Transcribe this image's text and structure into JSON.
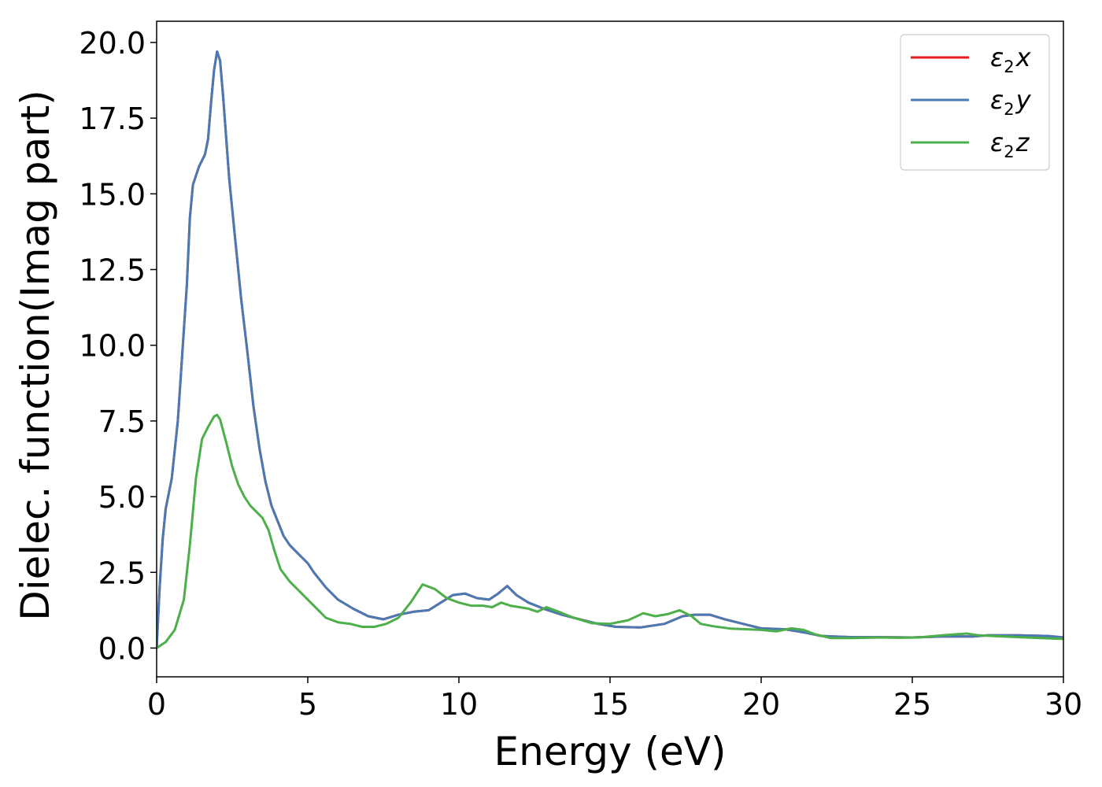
{
  "chart_data": {
    "type": "line",
    "xlabel": "Energy (eV)",
    "ylabel": "Dielec. function(Imag part)",
    "xlim": [
      0,
      30
    ],
    "ylim": [
      -0.95,
      20.7
    ],
    "xticks": [
      0,
      5,
      10,
      15,
      20,
      25,
      30
    ],
    "xtick_labels": [
      "0",
      "5",
      "10",
      "15",
      "20",
      "25",
      "30"
    ],
    "yticks": [
      0.0,
      2.5,
      5.0,
      7.5,
      10.0,
      12.5,
      15.0,
      17.5,
      20.0
    ],
    "ytick_labels": [
      "0.0",
      "2.5",
      "5.0",
      "7.5",
      "10.0",
      "12.5",
      "15.0",
      "17.5",
      "20.0"
    ],
    "grid": false,
    "legend_position": "top-right",
    "series": [
      {
        "name": "ε2x",
        "legend": {
          "base": "ε",
          "sub": "2",
          "var": "x"
        },
        "color": "#e41a1c",
        "points": [
          [
            0,
            0.0
          ],
          [
            0.1,
            2.0
          ],
          [
            0.2,
            3.6
          ],
          [
            0.3,
            4.6
          ],
          [
            0.5,
            5.6
          ],
          [
            0.7,
            7.5
          ],
          [
            1.0,
            12.0
          ],
          [
            1.1,
            14.2
          ],
          [
            1.2,
            15.3
          ],
          [
            1.4,
            15.9
          ],
          [
            1.6,
            16.3
          ],
          [
            1.7,
            16.8
          ],
          [
            1.8,
            18.0
          ],
          [
            1.9,
            19.1
          ],
          [
            2.0,
            19.7
          ],
          [
            2.1,
            19.4
          ],
          [
            2.2,
            18.2
          ],
          [
            2.4,
            15.5
          ],
          [
            2.6,
            13.5
          ],
          [
            2.8,
            11.5
          ],
          [
            3.0,
            9.8
          ],
          [
            3.2,
            8.0
          ],
          [
            3.4,
            6.6
          ],
          [
            3.6,
            5.5
          ],
          [
            3.8,
            4.7
          ],
          [
            4.0,
            4.2
          ],
          [
            4.2,
            3.7
          ],
          [
            4.4,
            3.4
          ],
          [
            4.6,
            3.2
          ],
          [
            4.8,
            3.0
          ],
          [
            5.0,
            2.8
          ],
          [
            5.2,
            2.5
          ],
          [
            5.6,
            2.0
          ],
          [
            6.0,
            1.6
          ],
          [
            6.5,
            1.3
          ],
          [
            7.0,
            1.05
          ],
          [
            7.5,
            0.95
          ],
          [
            8.0,
            1.1
          ],
          [
            8.5,
            1.2
          ],
          [
            9.0,
            1.25
          ],
          [
            9.4,
            1.5
          ],
          [
            9.8,
            1.75
          ],
          [
            10.2,
            1.8
          ],
          [
            10.6,
            1.65
          ],
          [
            11.0,
            1.6
          ],
          [
            11.3,
            1.8
          ],
          [
            11.6,
            2.05
          ],
          [
            11.9,
            1.75
          ],
          [
            12.3,
            1.5
          ],
          [
            12.8,
            1.3
          ],
          [
            13.4,
            1.1
          ],
          [
            14.0,
            0.95
          ],
          [
            14.6,
            0.8
          ],
          [
            15.2,
            0.7
          ],
          [
            16.0,
            0.68
          ],
          [
            16.8,
            0.8
          ],
          [
            17.4,
            1.05
          ],
          [
            17.8,
            1.1
          ],
          [
            18.3,
            1.1
          ],
          [
            18.8,
            0.95
          ],
          [
            19.4,
            0.8
          ],
          [
            20.0,
            0.65
          ],
          [
            20.8,
            0.62
          ],
          [
            21.5,
            0.5
          ],
          [
            22.0,
            0.4
          ],
          [
            23.0,
            0.36
          ],
          [
            24.0,
            0.36
          ],
          [
            25.0,
            0.35
          ],
          [
            26.0,
            0.38
          ],
          [
            27.0,
            0.38
          ],
          [
            27.5,
            0.42
          ],
          [
            28.5,
            0.42
          ],
          [
            29.5,
            0.4
          ],
          [
            30.0,
            0.35
          ]
        ]
      },
      {
        "name": "ε2y",
        "legend": {
          "base": "ε",
          "sub": "2",
          "var": "y"
        },
        "color": "#4a7ab3",
        "points": [
          [
            0,
            0.0
          ],
          [
            0.1,
            2.0
          ],
          [
            0.2,
            3.6
          ],
          [
            0.3,
            4.6
          ],
          [
            0.5,
            5.6
          ],
          [
            0.7,
            7.5
          ],
          [
            1.0,
            12.0
          ],
          [
            1.1,
            14.2
          ],
          [
            1.2,
            15.3
          ],
          [
            1.4,
            15.9
          ],
          [
            1.6,
            16.3
          ],
          [
            1.7,
            16.8
          ],
          [
            1.8,
            18.0
          ],
          [
            1.9,
            19.1
          ],
          [
            2.0,
            19.7
          ],
          [
            2.1,
            19.4
          ],
          [
            2.2,
            18.2
          ],
          [
            2.4,
            15.5
          ],
          [
            2.6,
            13.5
          ],
          [
            2.8,
            11.5
          ],
          [
            3.0,
            9.8
          ],
          [
            3.2,
            8.0
          ],
          [
            3.4,
            6.6
          ],
          [
            3.6,
            5.5
          ],
          [
            3.8,
            4.7
          ],
          [
            4.0,
            4.2
          ],
          [
            4.2,
            3.7
          ],
          [
            4.4,
            3.4
          ],
          [
            4.6,
            3.2
          ],
          [
            4.8,
            3.0
          ],
          [
            5.0,
            2.8
          ],
          [
            5.2,
            2.5
          ],
          [
            5.6,
            2.0
          ],
          [
            6.0,
            1.6
          ],
          [
            6.5,
            1.3
          ],
          [
            7.0,
            1.05
          ],
          [
            7.5,
            0.95
          ],
          [
            8.0,
            1.1
          ],
          [
            8.5,
            1.2
          ],
          [
            9.0,
            1.25
          ],
          [
            9.4,
            1.5
          ],
          [
            9.8,
            1.75
          ],
          [
            10.2,
            1.8
          ],
          [
            10.6,
            1.65
          ],
          [
            11.0,
            1.6
          ],
          [
            11.3,
            1.8
          ],
          [
            11.6,
            2.05
          ],
          [
            11.9,
            1.75
          ],
          [
            12.3,
            1.5
          ],
          [
            12.8,
            1.3
          ],
          [
            13.4,
            1.1
          ],
          [
            14.0,
            0.95
          ],
          [
            14.6,
            0.8
          ],
          [
            15.2,
            0.7
          ],
          [
            16.0,
            0.68
          ],
          [
            16.8,
            0.8
          ],
          [
            17.4,
            1.05
          ],
          [
            17.8,
            1.1
          ],
          [
            18.3,
            1.1
          ],
          [
            18.8,
            0.95
          ],
          [
            19.4,
            0.8
          ],
          [
            20.0,
            0.65
          ],
          [
            20.8,
            0.62
          ],
          [
            21.5,
            0.5
          ],
          [
            22.0,
            0.4
          ],
          [
            23.0,
            0.36
          ],
          [
            24.0,
            0.36
          ],
          [
            25.0,
            0.35
          ],
          [
            26.0,
            0.38
          ],
          [
            27.0,
            0.38
          ],
          [
            27.5,
            0.42
          ],
          [
            28.5,
            0.42
          ],
          [
            29.5,
            0.4
          ],
          [
            30.0,
            0.35
          ]
        ]
      },
      {
        "name": "ε2z",
        "legend": {
          "base": "ε",
          "sub": "2",
          "var": "z"
        },
        "color": "#4daf4a",
        "points": [
          [
            0,
            0.0
          ],
          [
            0.3,
            0.2
          ],
          [
            0.6,
            0.6
          ],
          [
            0.9,
            1.6
          ],
          [
            1.1,
            3.4
          ],
          [
            1.3,
            5.6
          ],
          [
            1.5,
            6.9
          ],
          [
            1.7,
            7.3
          ],
          [
            1.9,
            7.65
          ],
          [
            2.0,
            7.7
          ],
          [
            2.1,
            7.55
          ],
          [
            2.3,
            6.8
          ],
          [
            2.5,
            6.0
          ],
          [
            2.7,
            5.4
          ],
          [
            2.9,
            5.0
          ],
          [
            3.1,
            4.7
          ],
          [
            3.3,
            4.5
          ],
          [
            3.5,
            4.3
          ],
          [
            3.7,
            3.9
          ],
          [
            3.9,
            3.2
          ],
          [
            4.1,
            2.6
          ],
          [
            4.4,
            2.2
          ],
          [
            4.7,
            1.9
          ],
          [
            5.0,
            1.6
          ],
          [
            5.3,
            1.3
          ],
          [
            5.6,
            1.0
          ],
          [
            6.0,
            0.85
          ],
          [
            6.4,
            0.8
          ],
          [
            6.8,
            0.7
          ],
          [
            7.2,
            0.7
          ],
          [
            7.6,
            0.8
          ],
          [
            8.0,
            1.0
          ],
          [
            8.4,
            1.5
          ],
          [
            8.8,
            2.1
          ],
          [
            9.2,
            1.95
          ],
          [
            9.6,
            1.65
          ],
          [
            10.0,
            1.5
          ],
          [
            10.4,
            1.4
          ],
          [
            10.8,
            1.4
          ],
          [
            11.1,
            1.35
          ],
          [
            11.4,
            1.5
          ],
          [
            11.7,
            1.4
          ],
          [
            12.0,
            1.35
          ],
          [
            12.3,
            1.3
          ],
          [
            12.6,
            1.2
          ],
          [
            12.9,
            1.35
          ],
          [
            13.3,
            1.2
          ],
          [
            13.8,
            1.0
          ],
          [
            14.4,
            0.82
          ],
          [
            15.0,
            0.8
          ],
          [
            15.6,
            0.92
          ],
          [
            16.1,
            1.15
          ],
          [
            16.5,
            1.05
          ],
          [
            16.9,
            1.12
          ],
          [
            17.3,
            1.25
          ],
          [
            17.7,
            1.05
          ],
          [
            18.0,
            0.8
          ],
          [
            18.4,
            0.72
          ],
          [
            19.0,
            0.64
          ],
          [
            20.0,
            0.6
          ],
          [
            20.5,
            0.55
          ],
          [
            21.0,
            0.65
          ],
          [
            21.4,
            0.6
          ],
          [
            21.8,
            0.45
          ],
          [
            22.3,
            0.33
          ],
          [
            23.0,
            0.33
          ],
          [
            24.0,
            0.35
          ],
          [
            24.5,
            0.34
          ],
          [
            25.2,
            0.35
          ],
          [
            26.0,
            0.42
          ],
          [
            26.8,
            0.48
          ],
          [
            27.2,
            0.42
          ],
          [
            28.0,
            0.38
          ],
          [
            29.0,
            0.34
          ],
          [
            30.0,
            0.3
          ]
        ]
      }
    ]
  }
}
